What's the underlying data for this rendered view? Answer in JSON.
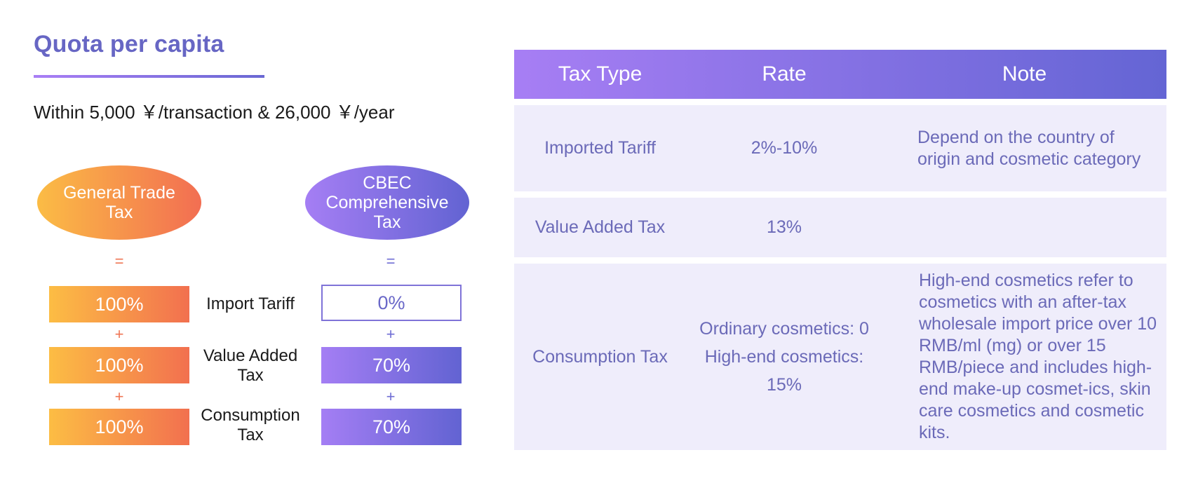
{
  "left": {
    "title": "Quota per capita",
    "limit": "Within 5,000 ￥/transaction & 26,000 ￥/year",
    "general_trade": {
      "label_line1": "General Trade",
      "label_line2": "Tax",
      "equals": "=",
      "tariff": "100%",
      "plus1": "+",
      "vat": "100%",
      "plus2": "+",
      "consumption": "100%"
    },
    "middle_labels": {
      "tariff": "Import Tariff",
      "vat_line1": "Value Added",
      "vat_line2": "Tax",
      "consumption_line1": "Consumption",
      "consumption_line2": "Tax"
    },
    "cbec": {
      "label_line1": "CBEC",
      "label_line2": "Comprehensive",
      "label_line3": "Tax",
      "equals": "=",
      "tariff": "0%",
      "plus1": "+",
      "vat": "70%",
      "plus2": "+",
      "consumption": "70%"
    }
  },
  "table": {
    "headers": {
      "tax_type": "Tax Type",
      "rate": "Rate",
      "note": "Note"
    },
    "rows": [
      {
        "tax_type": "Imported Tariff",
        "rate": "2%-10%",
        "note": "Depend on the country of origin and cosmetic category"
      },
      {
        "tax_type": "Value Added Tax",
        "rate": "13%",
        "note": ""
      },
      {
        "tax_type": "Consumption Tax",
        "rate_line1": "Ordinary cosmetics: 0",
        "rate_line2": "High-end cosmetics: 15%",
        "note": "High-end cosmetics refer to cosmetics with an after-tax wholesale import price over 10 RMB/ml (mg) or over 15 RMB/piece and includes high-end make-up cosmet-ics, skin care cosmetics and cosmetic kits."
      }
    ]
  },
  "colors": {
    "accent_purple": "#6766c4",
    "gradient_orange_start": "#fcbd44",
    "gradient_orange_end": "#f2704f",
    "gradient_purple_start": "#a77ef4",
    "gradient_purple_end": "#6465d4",
    "row_background": "#efedfb",
    "table_text": "#6b6ab8"
  }
}
